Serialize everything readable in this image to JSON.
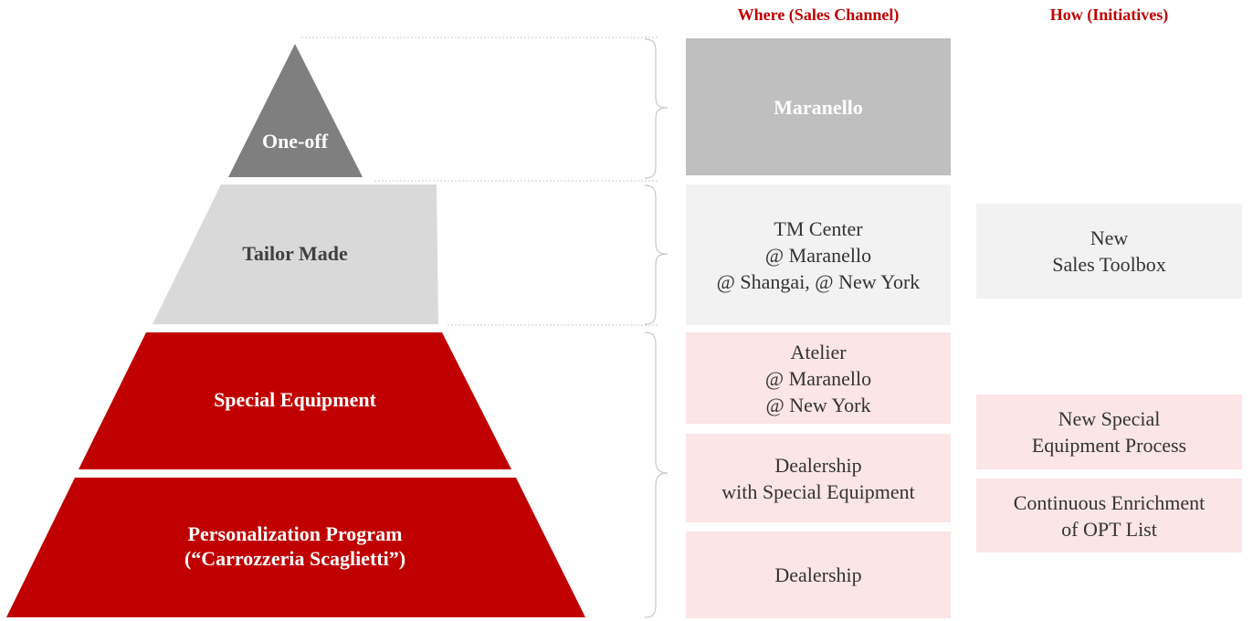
{
  "headers": {
    "where": "Where (Sales Channel)",
    "how": "How  (Initiatives)"
  },
  "colors": {
    "one_off": "#7f7f7f",
    "tailor_made": "#d9d9d9",
    "special": "#c00000",
    "header": "#c00000",
    "maranello_box": "#bfbfbf",
    "light_box": "#f2f2f2",
    "pink_box": "#fbe5e6"
  },
  "pyramid": {
    "tiers": [
      {
        "lines": [
          "One-off"
        ]
      },
      {
        "lines": [
          "Tailor Made"
        ]
      },
      {
        "lines": [
          "Special Equipment"
        ]
      },
      {
        "lines": [
          "Personalization Program",
          "(“Carrozzeria Scaglietti”)"
        ]
      }
    ]
  },
  "channels": [
    {
      "lines": [
        "Maranello"
      ]
    },
    {
      "lines": [
        "TM Center",
        "@ Maranello",
        "@ Shangai, @ New York"
      ]
    },
    {
      "lines": [
        "Atelier",
        "@ Maranello",
        "@ New York"
      ]
    },
    {
      "lines": [
        "Dealership",
        "with Special Equipment"
      ]
    },
    {
      "lines": [
        "Dealership"
      ]
    }
  ],
  "initiatives": [
    {
      "lines": [
        "New",
        "Sales Toolbox"
      ]
    },
    {
      "lines": [
        "New Special",
        "Equipment Process"
      ]
    },
    {
      "lines": [
        "Continuous Enrichment",
        "of OPT List"
      ]
    }
  ]
}
